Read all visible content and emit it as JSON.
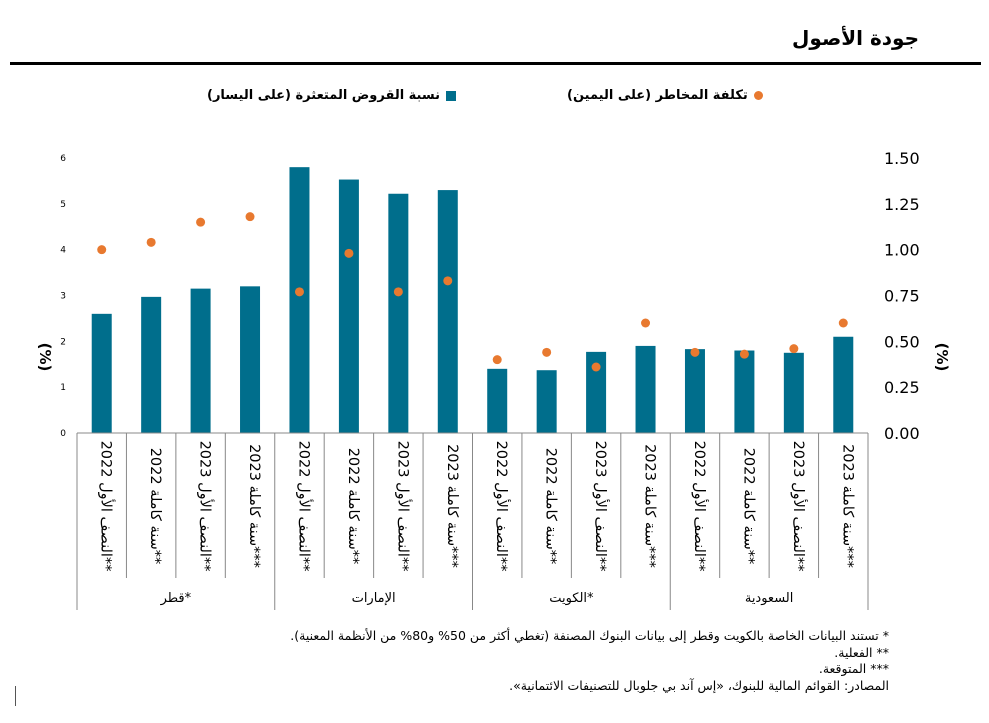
{
  "page": {
    "title": "جودة الأصول",
    "notes": [
      "* تستند البيانات الخاصة بالكويت وقطر إلى بيانات البنوك المصنفة (تغطي أكثر من 50% و80% من الأنظمة المعنية).",
      "** الفعلية.",
      "*** المتوقعة.",
      "المصادر: القوائم المالية للبنوك، «إس آند بي جلوبال للتصنيفات الائتمانية»."
    ]
  },
  "chart_data": {
    "type": "bar",
    "legend": {
      "bar_label": "نسبة القروض المتعثرة (على اليسار)",
      "dot_label": "تكلفة المخاطر (على اليمين)",
      "placement": "top"
    },
    "ylabel_left": "(%)",
    "ylabel_right": "(%)",
    "ylim_left": [
      0,
      6
    ],
    "ylim_right": [
      0,
      1.5
    ],
    "left_ticks": [
      "0",
      "1",
      "2",
      "3",
      "4",
      "5",
      "6"
    ],
    "right_ticks": [
      "0.00",
      "0.25",
      "0.50",
      "0.75",
      "1.00",
      "1.25",
      "1.50"
    ],
    "groups": [
      "قطر*",
      "الإمارات",
      "الكويت*",
      "السعودية"
    ],
    "period_labels": [
      "النصف الأول 2022**",
      "سنة كاملة 2022**",
      "النصف الأول 2023**",
      "سنة كاملة 2023***"
    ],
    "series": [
      {
        "name": "نسبة القروض المتعثرة (على اليسار)",
        "axis": "left",
        "color": "#006e8c",
        "values": [
          2.6,
          2.97,
          3.15,
          3.2,
          5.8,
          5.53,
          5.22,
          5.3,
          1.4,
          1.37,
          1.77,
          1.9,
          1.83,
          1.8,
          1.75,
          2.1
        ]
      },
      {
        "name": "تكلفة المخاطر (على اليمين)",
        "axis": "right",
        "color": "#e8792f",
        "values": [
          1.0,
          1.04,
          1.15,
          1.18,
          0.77,
          0.98,
          0.77,
          0.83,
          0.4,
          0.44,
          0.36,
          0.6,
          0.44,
          0.43,
          0.46,
          0.6
        ]
      }
    ]
  }
}
